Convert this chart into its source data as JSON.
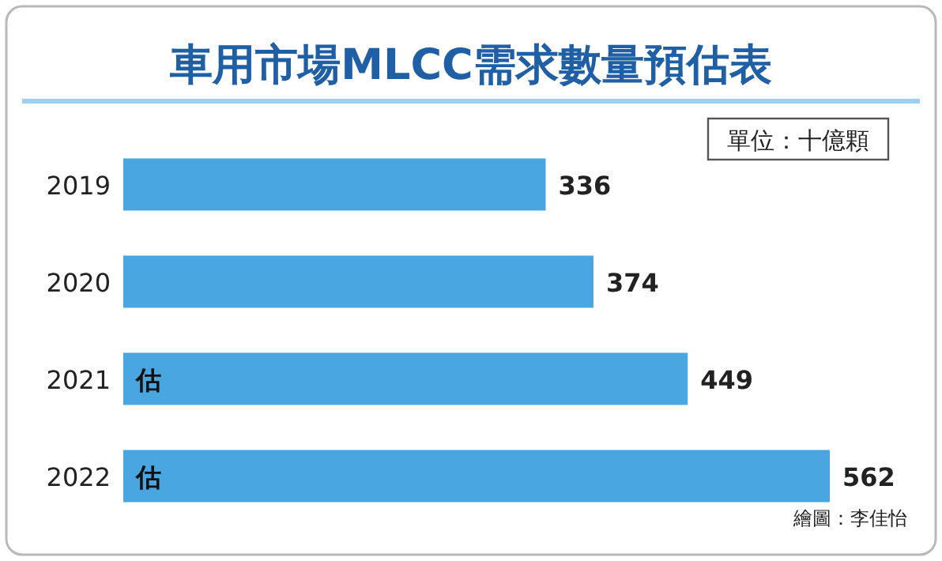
{
  "chart_data": {
    "type": "bar",
    "orientation": "horizontal",
    "title": "車用市場MLCC需求數量預估表",
    "categories": [
      "2019",
      "2020",
      "2021",
      "2022"
    ],
    "values": [
      336,
      374,
      449,
      562
    ],
    "color": "#4aa6e0",
    "data_labels": true,
    "annotations": [
      "單位：十億顆",
      "估",
      "估",
      "繪圖：李佳怡"
    ]
  }
}
